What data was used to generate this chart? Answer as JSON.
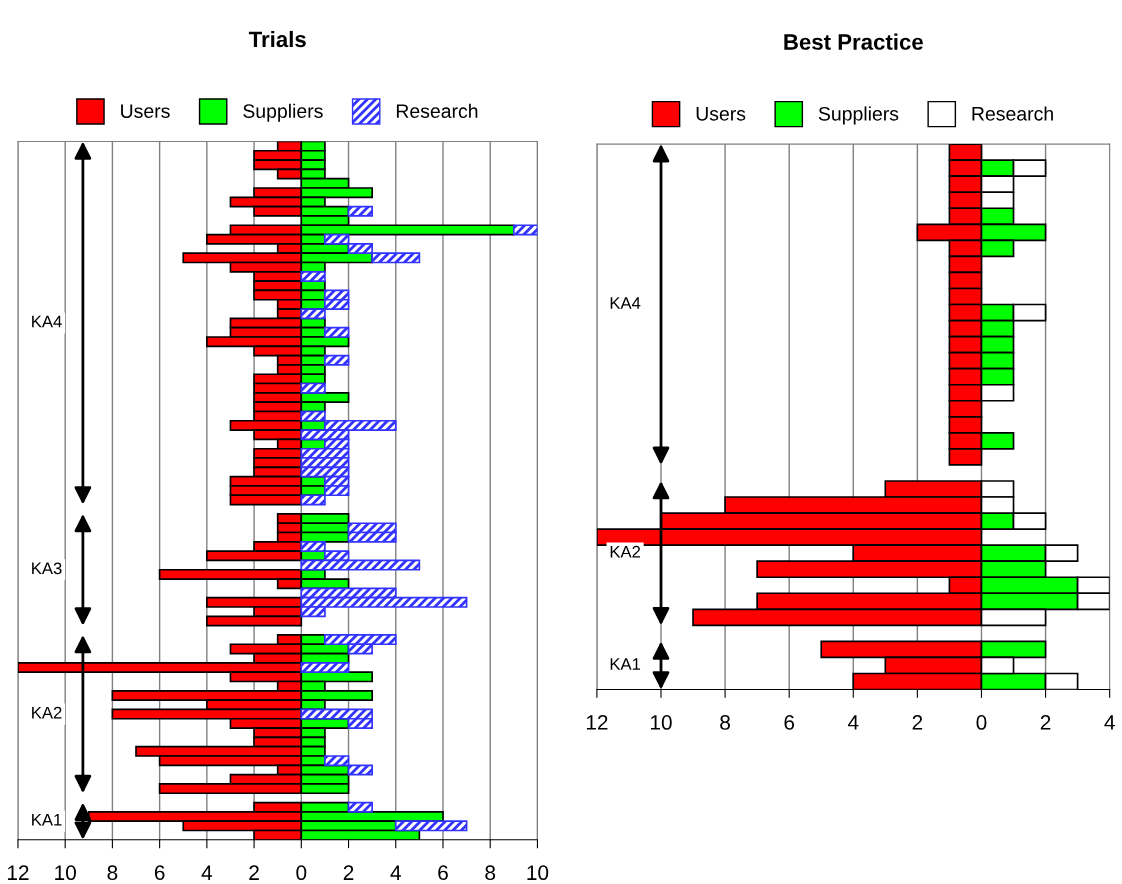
{
  "chart_data": [
    {
      "type": "bar",
      "title": "Trials",
      "orientation": "horizontal",
      "stacked": true,
      "legend": "top",
      "grid": "x",
      "tick_labels": "x",
      "categories": [
        null,
        null,
        null,
        null,
        null,
        null,
        null,
        null,
        null,
        null,
        null,
        null,
        null,
        null,
        null,
        null,
        null,
        null,
        null,
        null,
        null,
        null,
        null,
        null,
        null,
        null,
        null,
        null,
        null,
        null,
        null,
        null,
        null,
        null,
        null,
        null,
        null,
        null,
        null,
        null,
        null,
        null,
        null,
        null,
        null,
        null,
        null,
        null,
        null,
        null,
        null,
        null,
        null,
        null,
        null,
        null,
        null,
        null,
        null,
        null,
        null,
        null,
        null,
        null,
        null,
        null,
        null,
        null,
        null,
        null,
        null,
        null,
        null,
        null,
        null
      ],
      "series": [
        {
          "name": "Users",
          "color": "#ff0000",
          "values": [
            -1,
            -2,
            -2,
            -1,
            null,
            -2,
            -3,
            -2,
            null,
            -3,
            -4,
            -1,
            -5,
            -3,
            -2,
            -2,
            -2,
            -1,
            -1,
            -3,
            -3,
            -4,
            -2,
            -1,
            -1,
            -2,
            -2,
            -2,
            -2,
            -2,
            -3,
            -2,
            -1,
            -2,
            -2,
            -2,
            -3,
            -3,
            -3,
            null,
            -1,
            -1,
            -1,
            -2,
            -4,
            null,
            -6,
            -1,
            null,
            -4,
            -2,
            -4,
            null,
            -1,
            -3,
            -2,
            -12,
            -3,
            -1,
            -8,
            -4,
            -8,
            -3,
            -2,
            -2,
            -7,
            -6,
            -1,
            -3,
            -6,
            null,
            -2,
            -9,
            -5,
            -2
          ]
        },
        {
          "name": "Suppliers",
          "color": "#00ff00",
          "values": [
            1,
            1,
            1,
            1,
            2,
            3,
            1,
            2,
            2,
            9,
            1,
            2,
            3,
            1,
            null,
            1,
            1,
            1,
            null,
            1,
            1,
            2,
            1,
            1,
            1,
            1,
            null,
            2,
            1,
            null,
            1,
            null,
            1,
            null,
            null,
            null,
            1,
            1,
            null,
            null,
            2,
            2,
            2,
            null,
            1,
            null,
            1,
            2,
            null,
            null,
            null,
            null,
            null,
            1,
            2,
            2,
            null,
            3,
            1,
            3,
            1,
            null,
            2,
            1,
            1,
            1,
            1,
            2,
            2,
            2,
            null,
            2,
            6,
            4,
            5
          ]
        },
        {
          "name": "Research",
          "color": "#3333ff",
          "values": [
            null,
            null,
            null,
            null,
            null,
            null,
            null,
            1,
            null,
            1,
            1,
            1,
            2,
            null,
            1,
            null,
            1,
            1,
            1,
            null,
            1,
            null,
            null,
            1,
            null,
            null,
            1,
            null,
            null,
            1,
            3,
            2,
            1,
            2,
            2,
            2,
            1,
            1,
            1,
            null,
            null,
            2,
            2,
            1,
            1,
            5,
            null,
            null,
            4,
            7,
            1,
            null,
            null,
            3,
            1,
            null,
            2,
            null,
            null,
            null,
            null,
            3,
            1,
            null,
            null,
            null,
            1,
            1,
            null,
            null,
            null,
            1,
            null,
            3,
            null
          ]
        }
      ],
      "xlim": [
        -12,
        10
      ],
      "xticks": [
        {
          "value": -12,
          "label": "12"
        },
        {
          "value": -10,
          "label": "10"
        },
        {
          "value": -8,
          "label": "8"
        },
        {
          "value": -6,
          "label": "6"
        },
        {
          "value": -4,
          "label": "4"
        },
        {
          "value": -2,
          "label": "2"
        },
        0,
        2,
        4,
        6,
        8,
        10
      ],
      "annotations": [
        "KA4",
        "KA3",
        "KA2",
        "KA1"
      ]
    },
    {
      "type": "bar",
      "title": "Best Practice",
      "orientation": "horizontal",
      "stacked": true,
      "legend": "top",
      "grid": "x",
      "tick_labels": "x",
      "categories": [
        null,
        null,
        null,
        null,
        null,
        null,
        null,
        null,
        null,
        null,
        null,
        null,
        null,
        null,
        null,
        null,
        null,
        null,
        null,
        null,
        null,
        null,
        null,
        null,
        null,
        null,
        null,
        null,
        null,
        null,
        null,
        null,
        null,
        null
      ],
      "series": [
        {
          "name": "Users",
          "color": "#ff0000",
          "values": [
            -1,
            -1,
            -1,
            -1,
            -1,
            -2,
            -1,
            -1,
            -1,
            -1,
            -1,
            -1,
            -1,
            -1,
            -1,
            -1,
            -1,
            -1,
            -1,
            -1,
            null,
            -3,
            -8,
            -10,
            -12,
            -4,
            -7,
            -1,
            -7,
            -9,
            null,
            -5,
            -3,
            -4
          ]
        },
        {
          "name": "Suppliers",
          "color": "#00ff00",
          "values": [
            null,
            1,
            null,
            null,
            1,
            2,
            1,
            null,
            null,
            null,
            1,
            1,
            1,
            1,
            1,
            null,
            null,
            null,
            1,
            null,
            null,
            null,
            null,
            1,
            null,
            2,
            2,
            3,
            3,
            null,
            null,
            2,
            null,
            2
          ]
        },
        {
          "name": "Research",
          "color": "#ffffff",
          "values": [
            null,
            1,
            1,
            1,
            null,
            null,
            null,
            null,
            null,
            null,
            1,
            null,
            null,
            null,
            null,
            1,
            null,
            null,
            null,
            null,
            null,
            1,
            1,
            1,
            null,
            1,
            null,
            1,
            1,
            2,
            null,
            null,
            1,
            1
          ]
        }
      ],
      "xlim": [
        -12,
        4
      ],
      "xticks": [
        {
          "value": -12,
          "label": "12"
        },
        {
          "value": -10,
          "label": "10"
        },
        {
          "value": -8,
          "label": "8"
        },
        {
          "value": -6,
          "label": "6"
        },
        {
          "value": -4,
          "label": "4"
        },
        {
          "value": -2,
          "label": "2"
        },
        0,
        2,
        4
      ],
      "annotations": [
        "KA4",
        "KA2",
        "KA1"
      ]
    }
  ]
}
